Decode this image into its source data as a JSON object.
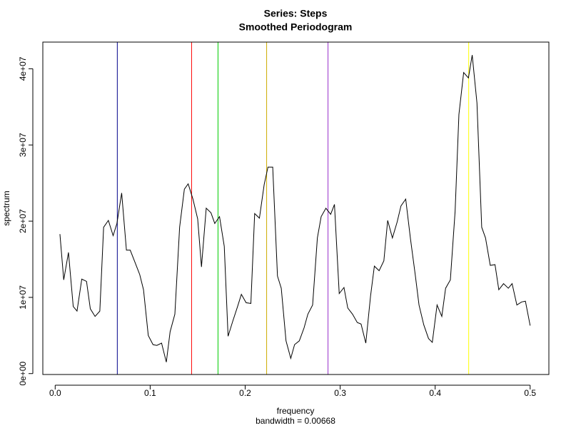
{
  "chart_data": {
    "type": "line",
    "title": "Series: Steps",
    "subtitle": "Smoothed Periodogram",
    "xlabel": "frequency",
    "xsublabel": "bandwidth = 0.00668",
    "ylabel": "spectrum",
    "x": [
      0.005,
      0.009,
      0.014,
      0.019,
      0.023,
      0.028,
      0.033,
      0.037,
      0.042,
      0.047,
      0.051,
      0.056,
      0.061,
      0.065,
      0.07,
      0.075,
      0.079,
      0.084,
      0.089,
      0.093,
      0.098,
      0.103,
      0.107,
      0.112,
      0.117,
      0.121,
      0.126,
      0.131,
      0.136,
      0.14,
      0.145,
      0.15,
      0.154,
      0.159,
      0.164,
      0.168,
      0.173,
      0.178,
      0.182,
      0.187,
      0.192,
      0.196,
      0.201,
      0.206,
      0.21,
      0.215,
      0.22,
      0.224,
      0.229,
      0.234,
      0.238,
      0.243,
      0.248,
      0.252,
      0.257,
      0.262,
      0.266,
      0.271,
      0.276,
      0.28,
      0.285,
      0.29,
      0.294,
      0.299,
      0.304,
      0.308,
      0.313,
      0.318,
      0.322,
      0.327,
      0.332,
      0.336,
      0.341,
      0.346,
      0.35,
      0.355,
      0.36,
      0.364,
      0.369,
      0.374,
      0.379,
      0.383,
      0.388,
      0.393,
      0.397,
      0.402,
      0.407,
      0.411,
      0.416,
      0.421,
      0.425,
      0.43,
      0.435,
      0.439,
      0.444,
      0.449,
      0.453,
      0.458,
      0.463,
      0.467,
      0.472,
      0.477,
      0.481,
      0.486,
      0.491,
      0.495,
      0.5
    ],
    "series": [
      {
        "color": "#000000",
        "values": [
          18300000,
          12300000,
          15900000,
          8800000,
          8200000,
          12400000,
          12100000,
          8500000,
          7500000,
          8200000,
          19200000,
          20100000,
          18100000,
          19700000,
          23700000,
          16200000,
          16200000,
          14600000,
          13000000,
          11000000,
          5000000,
          3800000,
          3700000,
          4000000,
          1500000,
          5500000,
          7800000,
          19200000,
          24200000,
          24900000,
          22900000,
          20300000,
          14000000,
          21700000,
          21100000,
          19700000,
          20600000,
          16700000,
          4900000,
          6900000,
          8800000,
          10400000,
          9300000,
          9200000,
          21000000,
          20400000,
          24800000,
          27100000,
          27100000,
          12800000,
          11200000,
          4300000,
          2000000,
          3800000,
          4300000,
          6000000,
          7800000,
          9000000,
          17800000,
          20600000,
          21700000,
          20900000,
          22200000,
          10500000,
          11300000,
          8600000,
          7800000,
          6700000,
          6500000,
          4000000,
          10200000,
          14100000,
          13500000,
          14800000,
          20100000,
          17800000,
          19900000,
          22000000,
          22900000,
          17700000,
          13000000,
          9000000,
          6400000,
          4600000,
          4100000,
          9000000,
          7500000,
          11200000,
          12300000,
          21300000,
          34000000,
          39500000,
          38800000,
          41800000,
          35500000,
          19200000,
          17800000,
          14200000,
          14300000,
          11000000,
          11800000,
          11200000,
          11800000,
          9000000,
          9400000,
          9500000,
          6300000
        ]
      }
    ],
    "vlines": [
      {
        "x": 0.0654,
        "color": "#00008b"
      },
      {
        "x": 0.1436,
        "color": "#ff0000"
      },
      {
        "x": 0.1714,
        "color": "#00cd00"
      },
      {
        "x": 0.2226,
        "color": "#cdad00"
      },
      {
        "x": 0.2872,
        "color": "#9932cc"
      },
      {
        "x": 0.4353,
        "color": "#ffff00"
      }
    ],
    "xlim": [
      -0.013,
      0.5197
    ],
    "ylim": [
      -120000,
      43500000
    ],
    "xticks": [
      {
        "value": 0,
        "label": "0.0"
      },
      0.1,
      0.2,
      0.3,
      0.4,
      0.5
    ],
    "yticks": [
      {
        "value": 0,
        "label": "0e+00"
      },
      {
        "value": 10000000,
        "label": "1e+07"
      },
      {
        "value": 20000000,
        "label": "2e+07"
      },
      {
        "value": 30000000,
        "label": "3e+07"
      },
      {
        "value": 40000000,
        "label": "4e+07"
      }
    ]
  }
}
